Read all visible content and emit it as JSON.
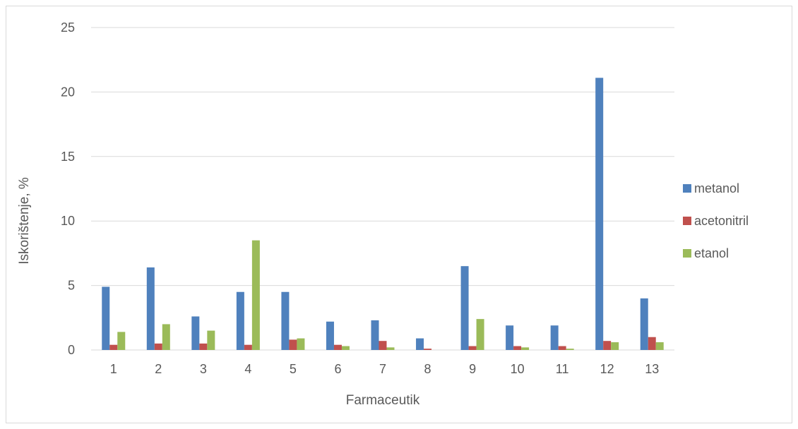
{
  "chart_data": {
    "type": "bar",
    "title": "",
    "xlabel": "Farmaceutik",
    "ylabel": "Iskorištenje, %",
    "ylim": [
      0,
      25
    ],
    "yticks": [
      0,
      5,
      10,
      15,
      20,
      25
    ],
    "grid": true,
    "legend_position": "right",
    "categories": [
      "1",
      "2",
      "3",
      "4",
      "5",
      "6",
      "7",
      "8",
      "9",
      "10",
      "11",
      "12",
      "13"
    ],
    "series": [
      {
        "name": "metanol",
        "color": "#4f81bd",
        "values": [
          4.9,
          6.4,
          2.6,
          4.5,
          4.5,
          2.2,
          2.3,
          0.9,
          6.5,
          1.9,
          1.9,
          21.1,
          4.0
        ]
      },
      {
        "name": "acetonitril",
        "color": "#c0504d",
        "values": [
          0.4,
          0.5,
          0.5,
          0.4,
          0.8,
          0.4,
          0.7,
          0.1,
          0.3,
          0.3,
          0.3,
          0.7,
          1.0
        ]
      },
      {
        "name": "etanol",
        "color": "#9bbb59",
        "values": [
          1.4,
          2.0,
          1.5,
          8.5,
          0.9,
          0.3,
          0.2,
          0.0,
          2.4,
          0.2,
          0.1,
          0.6,
          0.6
        ]
      }
    ]
  }
}
